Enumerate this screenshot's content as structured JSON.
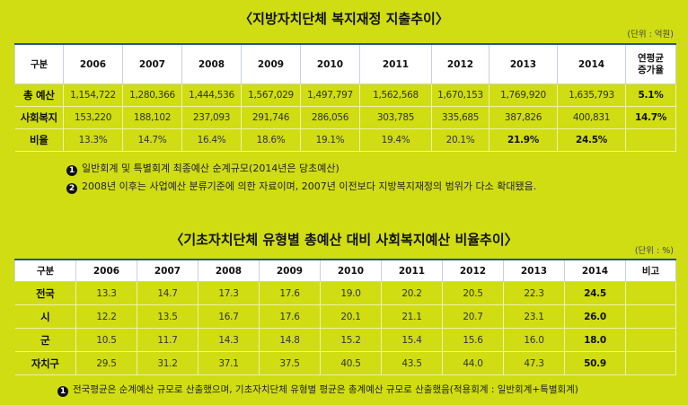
{
  "table1": {
    "title": "〈지방자치단체 복지재정 지출추이〉",
    "unit": "(단위 : 억원)",
    "header": [
      "구분",
      "2006",
      "2007",
      "2008",
      "2009",
      "2010",
      "2011",
      "2012",
      "2013",
      "2014",
      "연평균\n증가율"
    ],
    "rows": [
      {
        "label": "총 예산",
        "cells": [
          "1,154,722",
          "1,280,366",
          "1,444,536",
          "1,567,029",
          "1,497,797",
          "1,562,568",
          "1,670,153",
          "1,769,920",
          "1,635,793",
          "5.1%"
        ]
      },
      {
        "label": "사회복지",
        "cells": [
          "153,220",
          "188,102",
          "237,093",
          "291,746",
          "286,056",
          "303,785",
          "335,685",
          "387,826",
          "400,831",
          "14.7%"
        ]
      },
      {
        "label": "비율",
        "cells": [
          "13.3%",
          "14.7%",
          "16.4%",
          "18.6%",
          "19.1%",
          "19.4%",
          "20.1%",
          "21.9%",
          "24.5%",
          ""
        ]
      }
    ],
    "notes": [
      {
        "bullet": "1",
        "text": "일반회계 및 특별회계 최종예산 순계규모(2014년은 당초예산)"
      },
      {
        "bullet": "2",
        "text": "2008년 이후는 사업예산 분류기준에 의한 자료이며, 2007년 이전보다 지방복지재정의 범위가 다소 확대됐음."
      }
    ]
  },
  "table2": {
    "title": "〈기초자치단체 유형별 총예산 대비 사회복지예산 비율추이〉",
    "unit": "(단위 : %)",
    "header": [
      "구분",
      "2006",
      "2007",
      "2008",
      "2009",
      "2010",
      "2011",
      "2012",
      "2013",
      "2014",
      "비고"
    ],
    "rows": [
      {
        "label": "전국",
        "cells": [
          "13.3",
          "14.7",
          "17.3",
          "17.6",
          "19.0",
          "20.2",
          "20.5",
          "22.3",
          "24.5",
          ""
        ]
      },
      {
        "label": "시",
        "cells": [
          "12.2",
          "13.5",
          "16.7",
          "17.6",
          "20.1",
          "21.1",
          "20.7",
          "23.1",
          "26.0",
          ""
        ]
      },
      {
        "label": "군",
        "cells": [
          "10.5",
          "11.7",
          "14.3",
          "14.8",
          "15.2",
          "15.4",
          "15.6",
          "16.0",
          "18.0",
          ""
        ]
      },
      {
        "label": "자치구",
        "cells": [
          "29.5",
          "31.2",
          "37.1",
          "37.5",
          "40.5",
          "43.5",
          "44.0",
          "47.3",
          "50.9",
          ""
        ]
      }
    ],
    "notes": [
      {
        "bullet": "1",
        "text": "전국평균은 순계예산 규모로 산출했으며, 기초자치단체 유형별 평균은 총계예산 규모로 산출했음(적용회계 : 일반회계+특별회계)"
      }
    ]
  }
}
